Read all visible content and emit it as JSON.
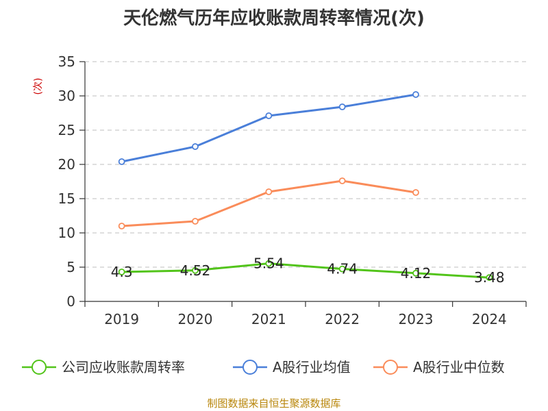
{
  "chart_data": {
    "type": "line",
    "title": "天伦燃气历年应收账款周转率情况(次)",
    "ylabel": "(次)",
    "categories": [
      "2019",
      "2020",
      "2021",
      "2022",
      "2023",
      "2024"
    ],
    "ylim": [
      0,
      35
    ],
    "yticks": [
      0,
      5,
      10,
      15,
      20,
      25,
      30,
      35
    ],
    "grid": true,
    "legend_position": "bottom",
    "series": [
      {
        "name": "公司应收账款周转率",
        "color": "#52c41a",
        "values": [
          4.3,
          4.52,
          5.54,
          4.74,
          4.12,
          3.48
        ],
        "labels": [
          "4.3",
          "4.52",
          "5.54",
          "4.74",
          "4.12",
          "3.48"
        ]
      },
      {
        "name": "A股行业均值",
        "color": "#4a7fd9",
        "values": [
          20.4,
          22.6,
          27.1,
          28.4,
          30.2,
          null
        ]
      },
      {
        "name": "A股行业中位数",
        "color": "#fa8c5a",
        "values": [
          11.0,
          11.7,
          16.0,
          17.6,
          15.9,
          null
        ]
      }
    ]
  },
  "source": "制图数据来自恒生聚源数据库"
}
